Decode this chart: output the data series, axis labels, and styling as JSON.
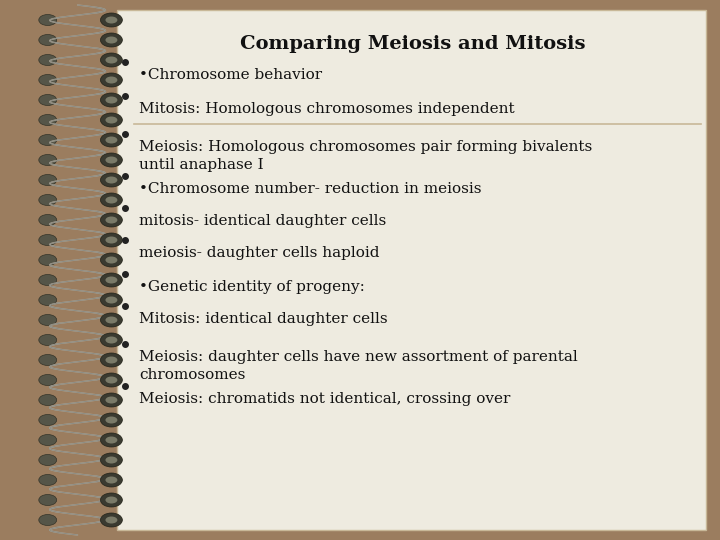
{
  "title": "Comparing Meiosis and Mitosis",
  "lines": [
    {
      "text": "•Chromosome behavior",
      "underline": false
    },
    {
      "text": "Mitosis: Homologous chromosomes independent",
      "underline": true
    },
    {
      "text": "Meiosis: Homologous chromosomes pair forming bivalents\nuntil anaphase I",
      "underline": false
    },
    {
      "text": "•Chromosome number- reduction in meiosis",
      "underline": false
    },
    {
      "text": "mitosis- identical daughter cells",
      "underline": false
    },
    {
      "text": "meiosis- daughter cells haploid",
      "underline": false
    },
    {
      "text": "•Genetic identity of progeny:",
      "underline": false
    },
    {
      "text": "Mitosis: identical daughter cells",
      "underline": false
    },
    {
      "text": "Meiosis: daughter cells have new assortment of parental\nchromosomes",
      "underline": false
    },
    {
      "text": "Meiosis: chromatids not identical, crossing over",
      "underline": false
    }
  ],
  "bg_outer": "#9b7d5f",
  "bg_paper": "#eeebe0",
  "text_color": "#111111",
  "title_color": "#111111",
  "line_color": "#c8b898"
}
